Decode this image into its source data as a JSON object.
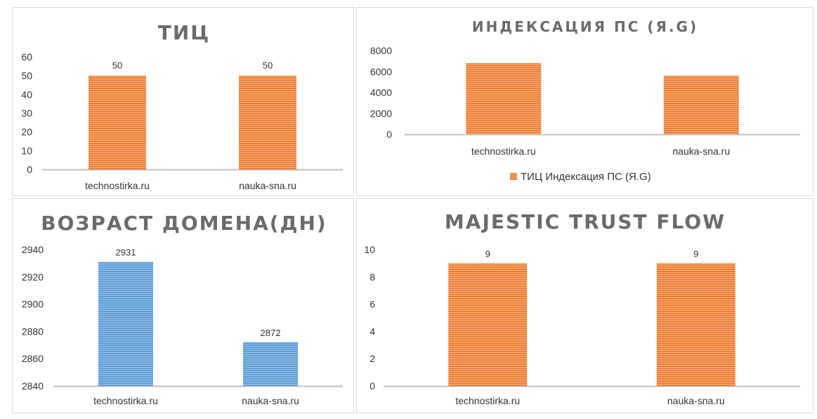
{
  "colors": {
    "orange": "#ED7D31",
    "blue": "#5B9BD5",
    "axis": "#bfbfbf"
  },
  "chart_data": [
    {
      "id": "tic",
      "type": "bar",
      "title": "ТИЦ",
      "categories": [
        "technostirka.ru",
        "nauka-sna.ru"
      ],
      "values": [
        50,
        50
      ],
      "ylim": [
        0,
        60
      ],
      "yticks": [
        0,
        10,
        20,
        30,
        40,
        50,
        60
      ],
      "data_labels": true,
      "color": "orange",
      "legend": null,
      "grid": false
    },
    {
      "id": "index",
      "type": "bar",
      "title": "ИНДЕКСАЦИЯ ПС (Я.G)",
      "categories": [
        "technostirka.ru",
        "nauka-sna.ru"
      ],
      "values": [
        6800,
        5600
      ],
      "ylim": [
        0,
        8000
      ],
      "yticks": [
        0,
        2000,
        4000,
        6000,
        8000
      ],
      "data_labels": false,
      "color": "orange",
      "legend": {
        "position": "bottom",
        "label": "ТИЦ Индексация ПС (Я.G)"
      },
      "grid": false
    },
    {
      "id": "age",
      "type": "bar",
      "title": "ВОЗРАСТ ДОМЕНА(ДН)",
      "categories": [
        "technostirka.ru",
        "nauka-sna.ru"
      ],
      "values": [
        2931,
        2872
      ],
      "ylim": [
        2840,
        2940
      ],
      "yticks": [
        2840,
        2860,
        2880,
        2900,
        2920,
        2940
      ],
      "data_labels": true,
      "color": "blue",
      "legend": null,
      "grid": false
    },
    {
      "id": "majestic",
      "type": "bar",
      "title": "MAJESTIC TRUST FLOW",
      "categories": [
        "technostirka.ru",
        "nauka-sna.ru"
      ],
      "values": [
        9,
        9
      ],
      "ylim": [
        0,
        10
      ],
      "yticks": [
        0,
        2,
        4,
        6,
        8,
        10
      ],
      "data_labels": true,
      "color": "orange",
      "legend": null,
      "grid": false
    }
  ]
}
